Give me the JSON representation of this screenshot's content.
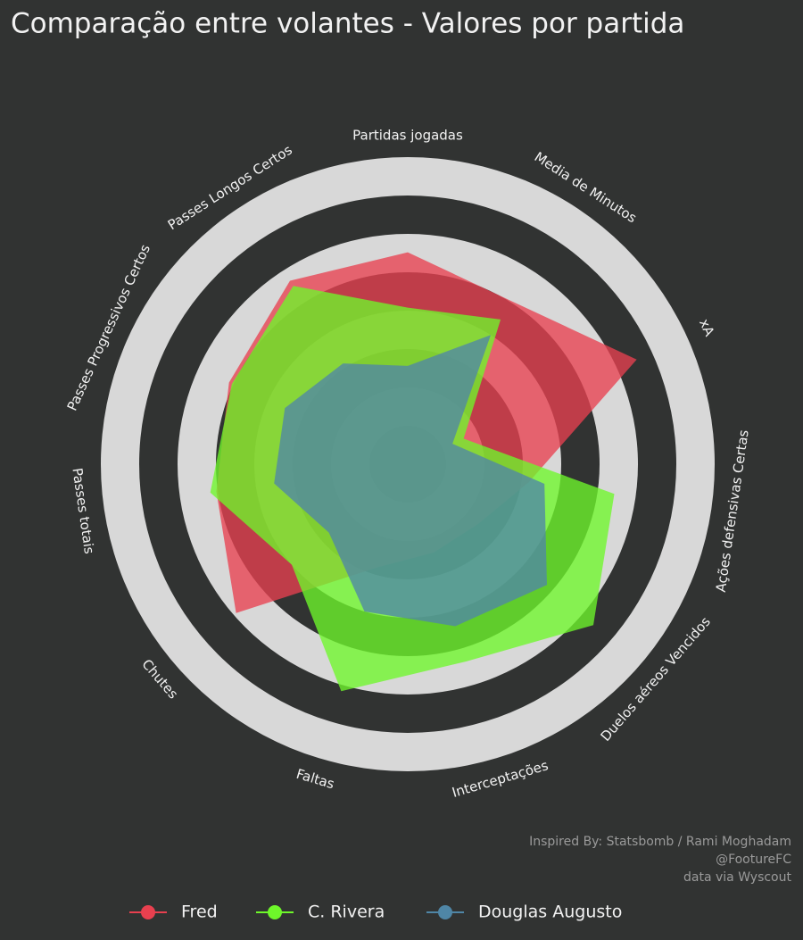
{
  "chart_data": {
    "type": "radar",
    "title": "Comparação entre volantes - Valores por partida",
    "categories": [
      "Partidas jogadas",
      "Media de Minutos",
      "xA",
      "Ações defensivas Certas",
      "Duelos aéreos Vencidos",
      "Interceptações",
      "Faltas",
      "Chutes",
      "Passes totais",
      "Passes Progressivos Certos",
      "Passes Longos Certos"
    ],
    "ylim": [
      0,
      100
    ],
    "series": [
      {
        "name": "Fred",
        "color": "#e8404f",
        "values": [
          69,
          63,
          82,
          40,
          30,
          30,
          35,
          74,
          63,
          64,
          71
        ]
      },
      {
        "name": "C. Rivera",
        "color": "#6ef72a",
        "values": [
          51,
          56,
          20,
          68,
          80,
          67,
          77,
          50,
          65,
          63,
          69
        ]
      },
      {
        "name": "Douglas Augusto",
        "color": "#4f86a6",
        "values": [
          32,
          50,
          16,
          45,
          60,
          55,
          50,
          34,
          44,
          44,
          39
        ]
      }
    ],
    "annotations": [
      "Inspired By: Statsbomb / Rami Moghadam",
      "@FootureFC",
      "data via Wyscout"
    ]
  }
}
